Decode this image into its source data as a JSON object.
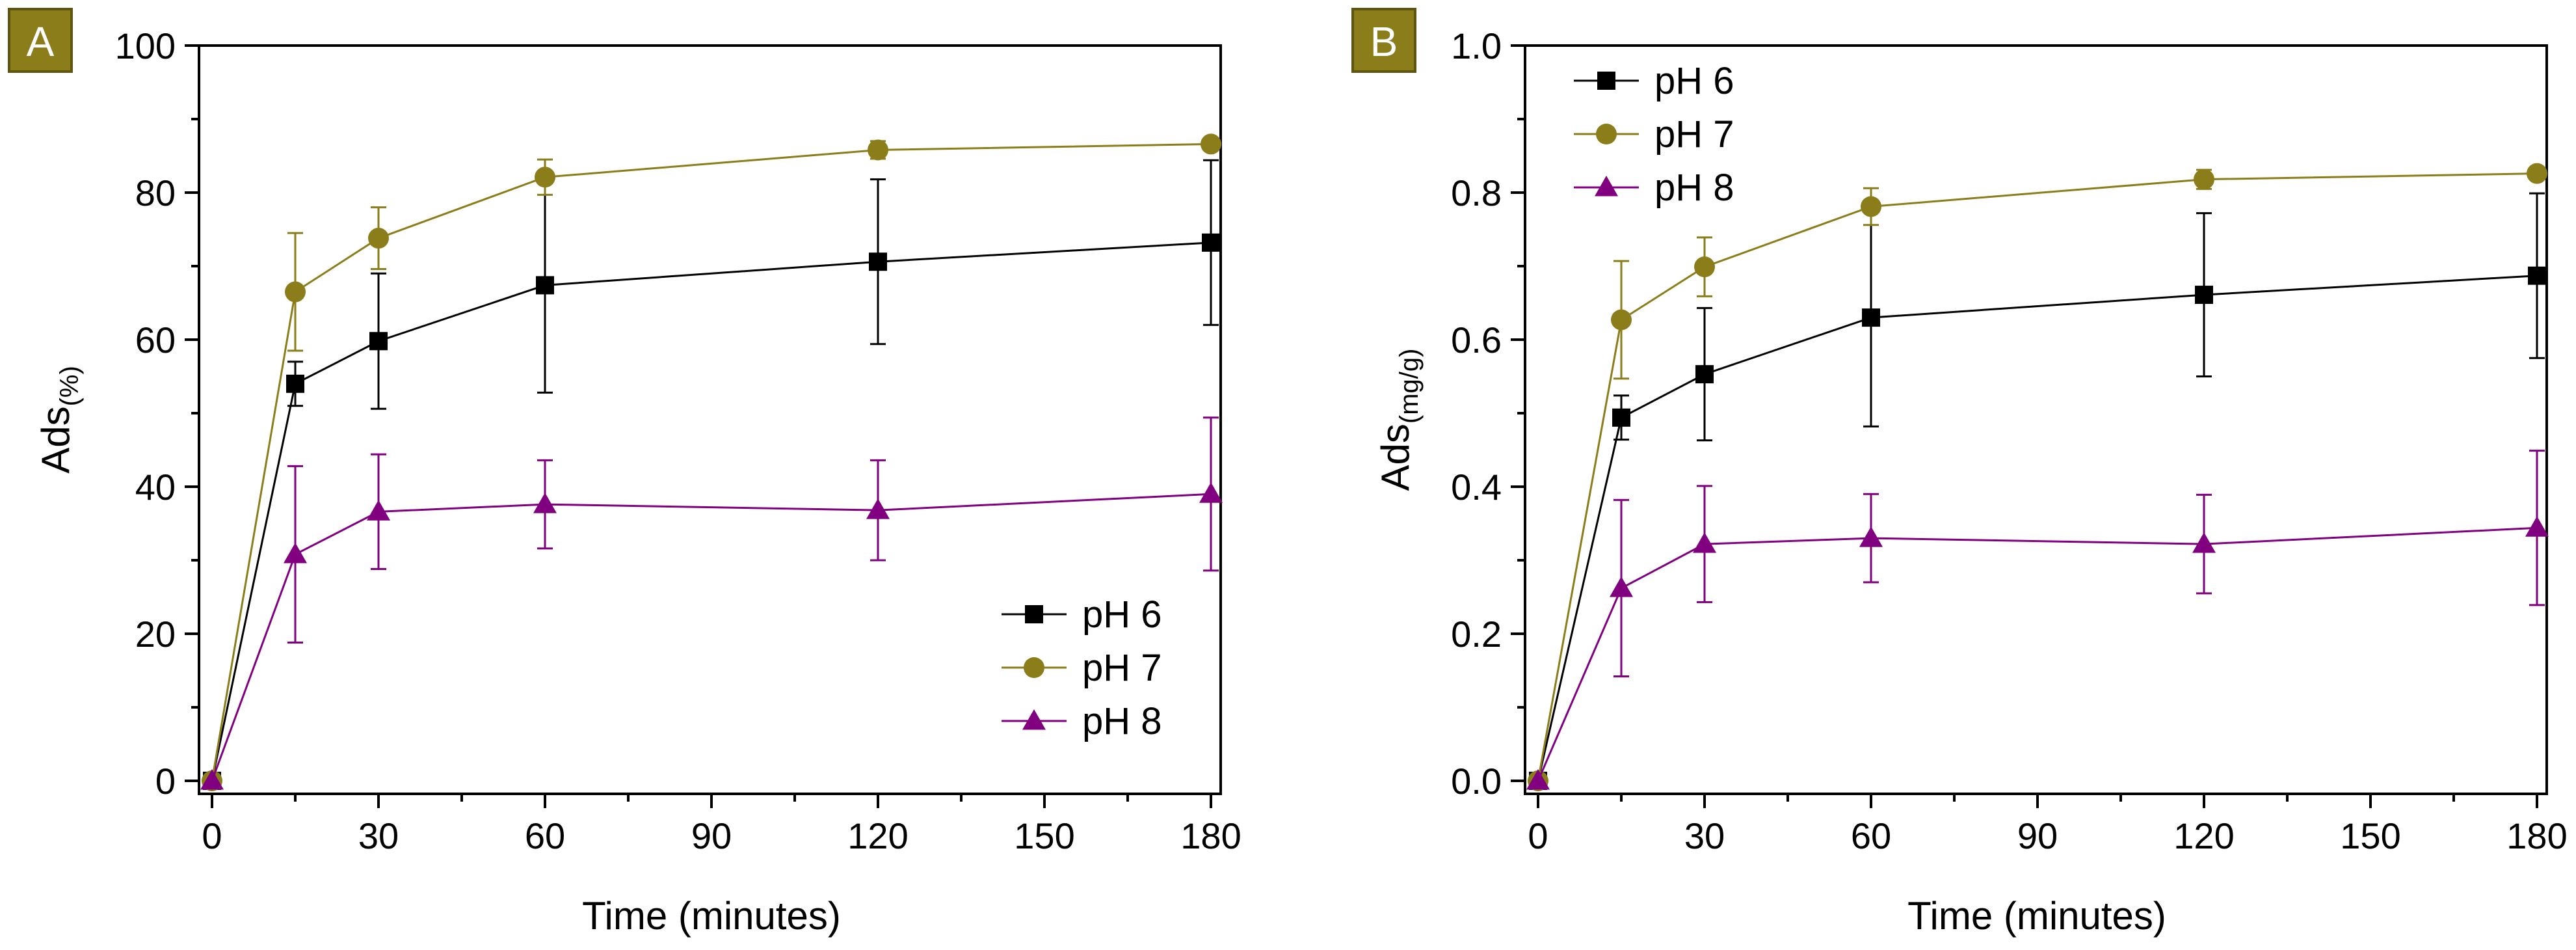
{
  "figure": {
    "panels": [
      {
        "letter": "A",
        "xlabel": "Time (minutes)",
        "ylabel_main": "Ads",
        "ylabel_sub": "(%)",
        "legend_position": "bottom-right"
      },
      {
        "letter": "B",
        "xlabel": "Time (minutes)",
        "ylabel_main": "Ads",
        "ylabel_sub": "(mg/g)",
        "legend_position": "top-left"
      }
    ],
    "colors": {
      "pH 6": "#000000",
      "pH 7": "#8b7d1a",
      "pH 8": "#800080",
      "panel_badge": "#8b7d1a"
    }
  },
  "chart_data": [
    {
      "type": "line",
      "panel": "A",
      "title": "",
      "xlabel": "Time (minutes)",
      "ylabel": "Ads(%)",
      "xlim": [
        0,
        180
      ],
      "ylim": [
        0,
        100
      ],
      "xticks": [
        0,
        30,
        60,
        90,
        120,
        150,
        180
      ],
      "yticks": [
        0,
        20,
        40,
        60,
        80,
        100
      ],
      "tick_labels_x": [
        "0",
        "30",
        "60",
        "90",
        "120",
        "150",
        "180"
      ],
      "tick_labels_y": [
        "0",
        "20",
        "40",
        "60",
        "80",
        "100"
      ],
      "grid": false,
      "legend": "bottom-right",
      "x": [
        0,
        15,
        30,
        60,
        120,
        180
      ],
      "series": [
        {
          "name": "pH 6",
          "marker": "square",
          "color": "#000000",
          "values": [
            0,
            54,
            59.8,
            67.4,
            70.6,
            73.2
          ],
          "errors": [
            0,
            3,
            9.2,
            14.6,
            11.2,
            11.2
          ]
        },
        {
          "name": "pH 7",
          "marker": "circle",
          "color": "#8b7d1a",
          "values": [
            0,
            66.5,
            73.8,
            82.1,
            85.8,
            86.6
          ],
          "errors": [
            0,
            8,
            4.2,
            2.4,
            1.2,
            0.6
          ]
        },
        {
          "name": "pH 8",
          "marker": "triangle",
          "color": "#800080",
          "values": [
            0,
            30.8,
            36.6,
            37.6,
            36.8,
            39
          ],
          "errors": [
            0,
            12,
            7.8,
            6,
            6.8,
            10.4
          ]
        }
      ]
    },
    {
      "type": "line",
      "panel": "B",
      "title": "",
      "xlabel": "Time (minutes)",
      "ylabel": "Ads(mg/g)",
      "xlim": [
        0,
        180
      ],
      "ylim": [
        0,
        1.0
      ],
      "xticks": [
        0,
        30,
        60,
        90,
        120,
        150,
        180
      ],
      "yticks": [
        0,
        0.2,
        0.4,
        0.6,
        0.8,
        1.0
      ],
      "tick_labels_x": [
        "0",
        "30",
        "60",
        "90",
        "120",
        "150",
        "180"
      ],
      "tick_labels_y": [
        "0.0",
        "0.2",
        "0.4",
        "0.6",
        "0.8",
        "1.0"
      ],
      "grid": false,
      "legend": "top-left",
      "x": [
        0,
        15,
        30,
        60,
        120,
        180
      ],
      "series": [
        {
          "name": "pH 6",
          "marker": "square",
          "color": "#000000",
          "values": [
            0,
            0.494,
            0.553,
            0.63,
            0.661,
            0.687
          ],
          "errors": [
            0,
            0.03,
            0.09,
            0.148,
            0.111,
            0.112
          ]
        },
        {
          "name": "pH 7",
          "marker": "circle",
          "color": "#8b7d1a",
          "values": [
            0,
            0.627,
            0.699,
            0.781,
            0.818,
            0.826
          ],
          "errors": [
            0,
            0.08,
            0.04,
            0.025,
            0.013,
            0.006
          ]
        },
        {
          "name": "pH 8",
          "marker": "triangle",
          "color": "#800080",
          "values": [
            0,
            0.262,
            0.322,
            0.33,
            0.322,
            0.344
          ],
          "errors": [
            0,
            0.12,
            0.079,
            0.06,
            0.067,
            0.105
          ]
        }
      ]
    }
  ]
}
